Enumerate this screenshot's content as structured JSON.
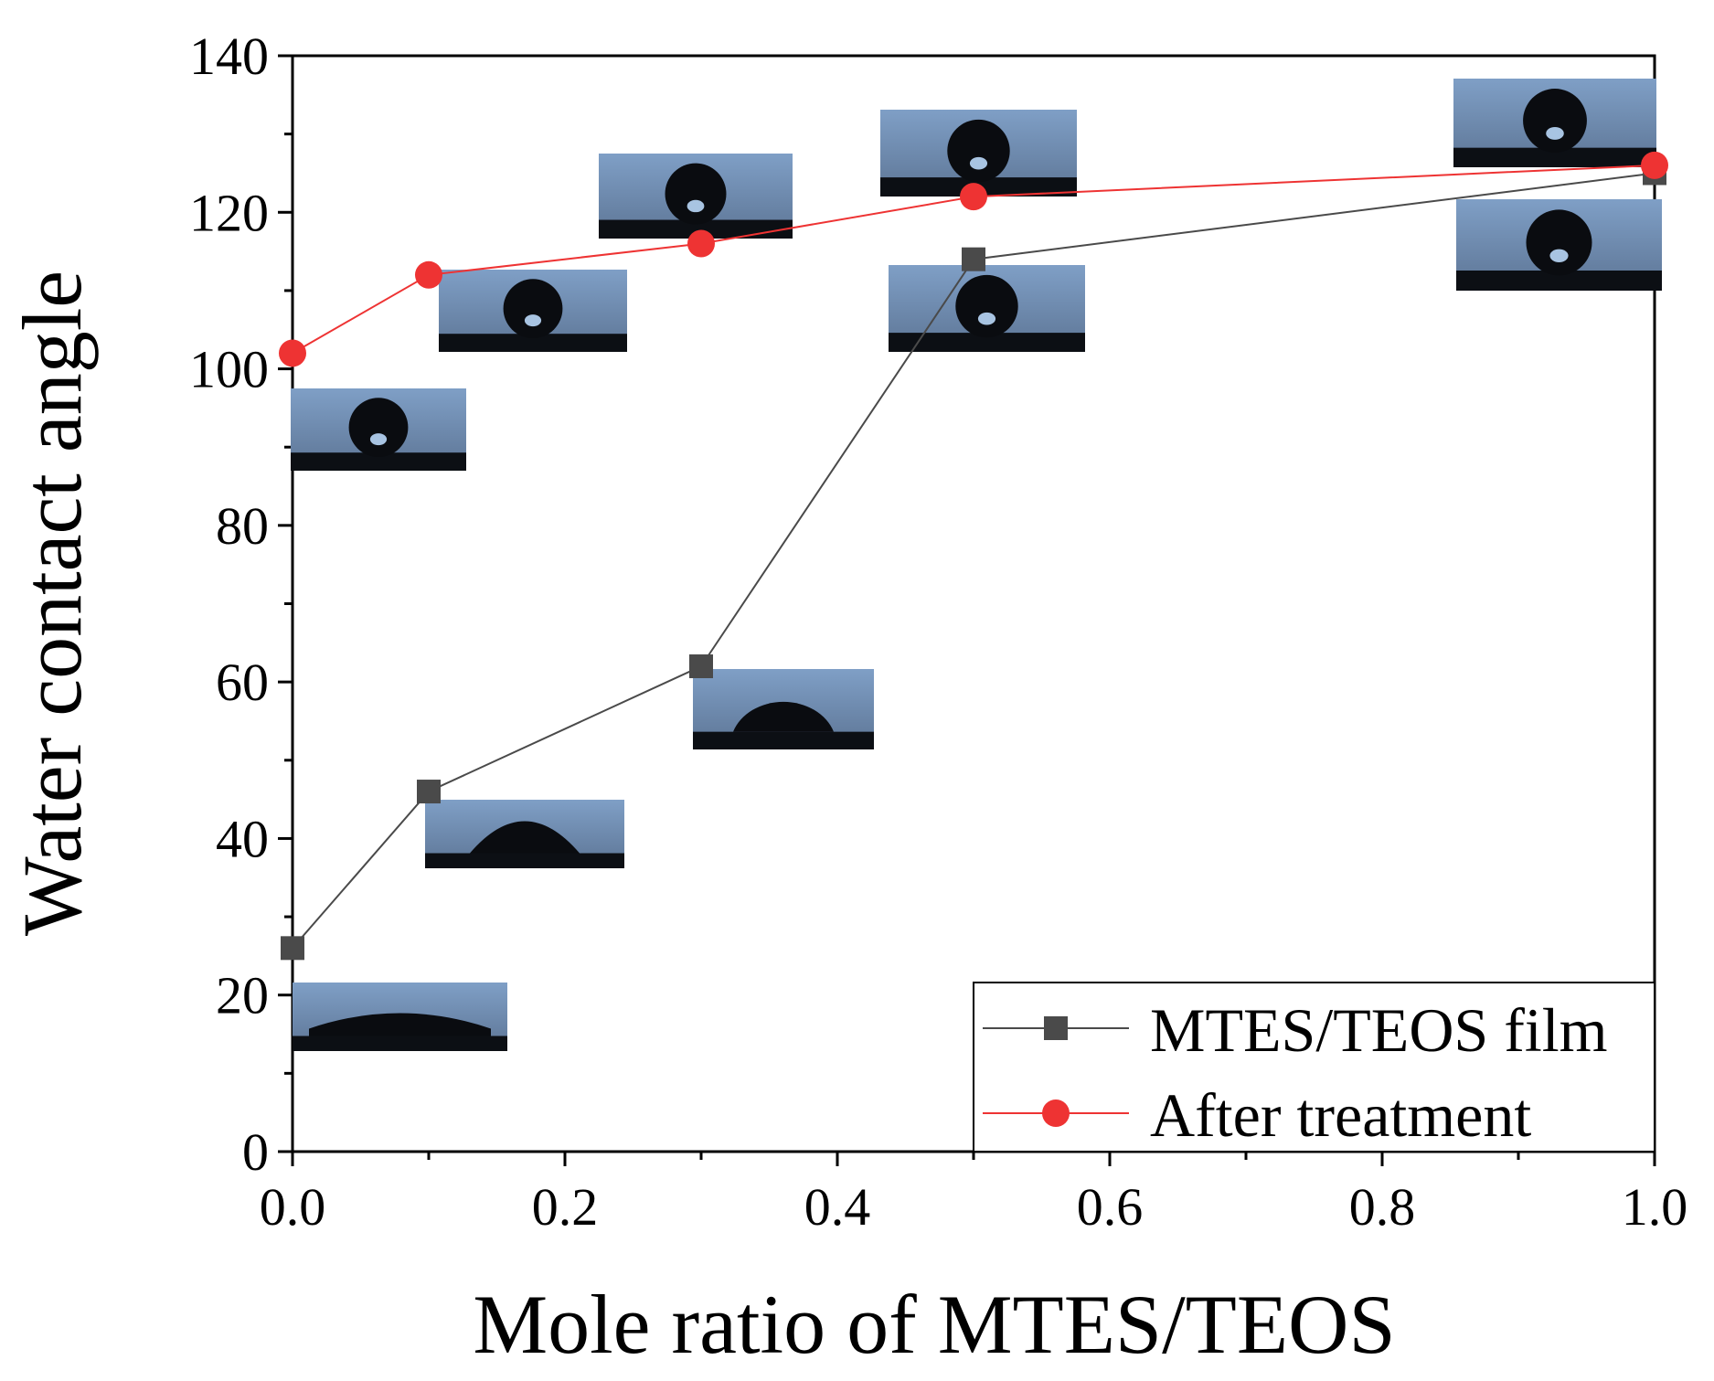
{
  "chart_data": {
    "type": "line",
    "title": "",
    "xlabel": "Mole ratio of MTES/TEOS",
    "ylabel": "Water contact angle",
    "xlim": [
      0,
      1.0
    ],
    "ylim": [
      0,
      140
    ],
    "xticks": [
      "0.0",
      "0.2",
      "0.4",
      "0.6",
      "0.8",
      "1.0"
    ],
    "yticks": [
      "0",
      "20",
      "40",
      "60",
      "80",
      "100",
      "120",
      "140"
    ],
    "grid": false,
    "legend_position": "bottom-right",
    "series": [
      {
        "name": "MTES/TEOS film",
        "color": "#4a4a4a",
        "marker": "square",
        "x": [
          0.0,
          0.1,
          0.3,
          0.5,
          1.0
        ],
        "values": [
          26,
          46,
          62,
          114,
          125
        ]
      },
      {
        "name": "After treatment",
        "color": "#ee3333",
        "marker": "circle",
        "x": [
          0.0,
          0.1,
          0.3,
          0.5,
          1.0
        ],
        "values": [
          102,
          112,
          116,
          122,
          126
        ]
      }
    ]
  }
}
